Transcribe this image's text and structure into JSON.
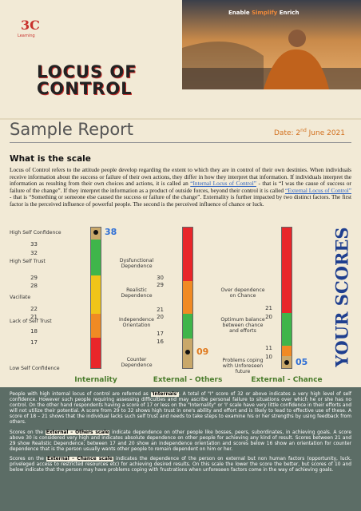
{
  "header": {
    "logo_mark": "3C",
    "logo_text": "Learning",
    "tagline": [
      "Enable",
      "Simplify",
      "Enrich"
    ],
    "title_line1": "LOCUS OF",
    "title_line2": "CONTROL"
  },
  "report_title": "Sample Report",
  "date": {
    "prefix": "Date: 2",
    "sup": "nd",
    "suffix": " June 2021"
  },
  "section": {
    "heading": "What is the scale",
    "paragraph": [
      "Locus of Control refers to the attitude people develop regarding the extent to which they are in control of their own destinies. When individuals receive information about the success or failure of their own actions, they differ in how they interpret that information. If individuals interpret the information as resulting from their own choices and actions, it is called an ",
      "“Internal Locus of Control”",
      " - that is “I was the cause of success or failure of the change”. If they interpret the information as a product of outside forces, beyond their control it is called ",
      "“External Locus of Control”",
      " - that is “Something or someone else caused the success or failure of the change”. Externality is further impacted by two distinct factors.  The first factor is the perceived influence of powerful people.  The second is the perceived influence of chance or luck."
    ]
  },
  "scale": {
    "side_label": "YOUR SCORES",
    "columns": [
      {
        "name": "Internality",
        "labels": [
          "High Self Confidence",
          "High Self Trust",
          "Vacillate",
          "Lack of Self Trust",
          "Low Self Confidence"
        ],
        "ticks": [
          "33",
          "32",
          "29",
          "28",
          "22",
          "21",
          "18",
          "17"
        ],
        "score": "38"
      },
      {
        "name": "External - Others",
        "labels": [
          "Dysfunctional Dependence",
          "Realistic Dependence",
          "Independence Orientation",
          "Counter Dependence"
        ],
        "ticks": [
          "30",
          "29",
          "21",
          "20",
          "17",
          "16"
        ],
        "score": "09"
      },
      {
        "name": "External - Chance",
        "labels": [
          "Over dependence on Chance",
          "Optimum balance between chance and efforts",
          "Problems coping with Unforeseen future"
        ],
        "ticks": [
          "21",
          "20",
          "11",
          "10"
        ],
        "score": "05"
      }
    ]
  },
  "footer": {
    "paragraphs": [
      [
        "People with high internal locus of control are referred as ",
        "'Internals'",
        ". A total of \"I\" score of 32 or above indicates a very high level of self confidence. However such people requiring assessing difficulties and may ascribe personal failure to situations over which he or she has no control. On the other hand respondents having a score of 17 or less on the \"Internality\" or 'I' scale have very little confidence in their efforts and will not utilize their potential. A score from 29 to 32 shows high trust in one's ability and effort and is likely to lead to effective use of these. A score of 18 – 21 shows that the individual lacks such self trust and needs to take steps to examine his or her strengths by using feedback from others."
      ],
      [
        "Scores on the ",
        "External – Others scale",
        " indicate dependence on other people like bosses, peers, subordinates, in achieving goals. A score above 30 is considered very high  and indicates absolute dependence on other people for achieving any kind of result. Scores between 21 and 29 show Realistic Dependence; between 17 and 20 show an independence orientation and scores below 16 show an orientation for counter dependence that is the person usually wants other people to remain dependent on him or her."
      ],
      [
        "Scores on the ",
        "External – Chance scale",
        " indicates the dependence of the person on external but non human factors (opportunity, luck, priveleged access to restricted resources etc) for achieving desired results. On this scale the lower the score the better, but scores of 10 and below indicate that the person may have problems coping with frustrations when unforeseen factors come in the way of achieving goals."
      ]
    ]
  }
}
